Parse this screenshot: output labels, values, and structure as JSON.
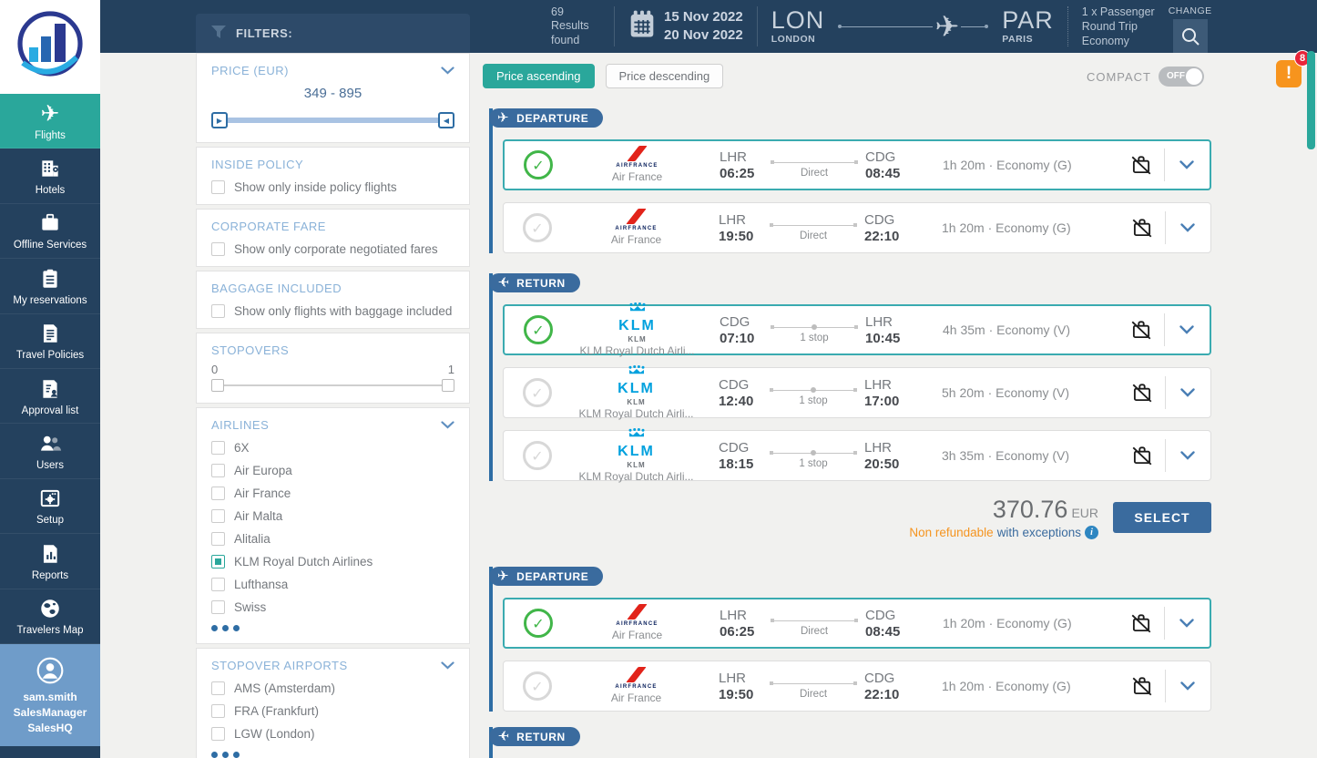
{
  "colors": {
    "navy": "#24415e",
    "teal_accent": "#2aa79b",
    "blue_accent": "#3a6b9e",
    "selected_border": "#3aabb0",
    "check_green": "#41b649",
    "orange": "#f5941f",
    "badge_red": "#e8253a",
    "klm_blue": "#00a1de",
    "airfrance_red": "#e2231a"
  },
  "sidebar": {
    "items": [
      {
        "label": "Flights",
        "icon": "plane",
        "active": true
      },
      {
        "label": "Hotels",
        "icon": "hotel",
        "active": false
      },
      {
        "label": "Offline Services",
        "icon": "briefcase",
        "active": false
      },
      {
        "label": "My reservations",
        "icon": "reservation",
        "active": false
      },
      {
        "label": "Travel Policies",
        "icon": "policy",
        "active": false
      },
      {
        "label": "Approval list",
        "icon": "approval",
        "active": false
      },
      {
        "label": "Users",
        "icon": "users",
        "active": false
      },
      {
        "label": "Setup",
        "icon": "setup",
        "active": false
      },
      {
        "label": "Reports",
        "icon": "report",
        "active": false
      },
      {
        "label": "Travelers Map",
        "icon": "globe",
        "active": false
      }
    ],
    "user": {
      "name": "sam.smith",
      "role": "SalesManager",
      "org": "SalesHQ"
    }
  },
  "header": {
    "results_count": "69",
    "results_label": "Results found",
    "date_from": "15 Nov 2022",
    "date_to": "20 Nov 2022",
    "origin_code": "LON",
    "origin_city": "LONDON",
    "dest_code": "PAR",
    "dest_city": "PARIS",
    "passenger": "1 x Passenger",
    "trip_type": "Round Trip",
    "cabin": "Economy",
    "change_label": "CHANGE"
  },
  "filters": {
    "title": "FILTERS:",
    "price": {
      "title": "PRICE (EUR)",
      "range": "349 - 895"
    },
    "inside_policy": {
      "title": "INSIDE POLICY",
      "options": [
        {
          "label": "Show only inside policy flights",
          "checked": false
        }
      ]
    },
    "corporate_fare": {
      "title": "CORPORATE FARE",
      "options": [
        {
          "label": "Show only corporate negotiated fares",
          "checked": false
        }
      ]
    },
    "baggage": {
      "title": "BAGGAGE INCLUDED",
      "options": [
        {
          "label": "Show only flights with baggage included",
          "checked": false
        }
      ]
    },
    "stopovers": {
      "title": "STOPOVERS",
      "min": "0",
      "max": "1"
    },
    "airlines": {
      "title": "AIRLINES",
      "options": [
        {
          "label": "6X",
          "checked": false
        },
        {
          "label": "Air Europa",
          "checked": false
        },
        {
          "label": "Air France",
          "checked": false
        },
        {
          "label": "Air Malta",
          "checked": false
        },
        {
          "label": "Alitalia",
          "checked": false
        },
        {
          "label": "KLM Royal Dutch Airlines",
          "checked": true
        },
        {
          "label": "Lufthansa",
          "checked": false
        },
        {
          "label": "Swiss",
          "checked": false
        }
      ]
    },
    "stopover_airports": {
      "title": "STOPOVER AIRPORTS",
      "options": [
        {
          "label": "AMS (Amsterdam)",
          "checked": false
        },
        {
          "label": "FRA (Frankfurt)",
          "checked": false
        },
        {
          "label": "LGW (London)",
          "checked": false
        }
      ]
    }
  },
  "toolbar": {
    "sort_asc": "Price ascending",
    "sort_desc": "Price descending",
    "compact_label": "COMPACT",
    "compact_state": "OFF"
  },
  "results": {
    "groups": [
      {
        "departure_label": "DEPARTURE",
        "departure_flights": [
          {
            "selected": true,
            "logo": "airfrance",
            "carrier_name": "Air France",
            "from_code": "LHR",
            "from_time": "06:25",
            "stop_label": "Direct",
            "to_code": "CDG",
            "to_time": "08:45",
            "info": "1h 20m · Economy (G)"
          },
          {
            "selected": false,
            "logo": "airfrance",
            "carrier_name": "Air France",
            "from_code": "LHR",
            "from_time": "19:50",
            "stop_label": "Direct",
            "to_code": "CDG",
            "to_time": "22:10",
            "info": "1h 20m · Economy (G)"
          }
        ],
        "return_label": "RETURN",
        "return_flights": [
          {
            "selected": true,
            "logo": "klm",
            "carrier_small": "KLM",
            "carrier_name": "KLM Royal Dutch Airli...",
            "from_code": "CDG",
            "from_time": "07:10",
            "stop_label": "1 stop",
            "to_code": "LHR",
            "to_time": "10:45",
            "info": "4h 35m · Economy (V)"
          },
          {
            "selected": false,
            "logo": "klm",
            "carrier_small": "KLM",
            "carrier_name": "KLM Royal Dutch Airli...",
            "from_code": "CDG",
            "from_time": "12:40",
            "stop_label": "1 stop",
            "to_code": "LHR",
            "to_time": "17:00",
            "info": "5h 20m · Economy (V)"
          },
          {
            "selected": false,
            "logo": "klm",
            "carrier_small": "KLM",
            "carrier_name": "KLM Royal Dutch Airli...",
            "from_code": "CDG",
            "from_time": "18:15",
            "stop_label": "1 stop",
            "to_code": "LHR",
            "to_time": "20:50",
            "info": "3h 35m · Economy (V)"
          }
        ],
        "price": {
          "amount": "370.76",
          "currency": "EUR",
          "refund_highlight": "Non refundable",
          "refund_rest": "with exceptions",
          "select_label": "SELECT"
        }
      },
      {
        "departure_label": "DEPARTURE",
        "departure_flights": [
          {
            "selected": true,
            "logo": "airfrance",
            "carrier_name": "Air France",
            "from_code": "LHR",
            "from_time": "06:25",
            "stop_label": "Direct",
            "to_code": "CDG",
            "to_time": "08:45",
            "info": "1h 20m · Economy (G)"
          },
          {
            "selected": false,
            "logo": "airfrance",
            "carrier_name": "Air France",
            "from_code": "LHR",
            "from_time": "19:50",
            "stop_label": "Direct",
            "to_code": "CDG",
            "to_time": "22:10",
            "info": "1h 20m · Economy (G)"
          }
        ],
        "return_label": "RETURN"
      }
    ]
  },
  "alerts": {
    "count": "8"
  }
}
